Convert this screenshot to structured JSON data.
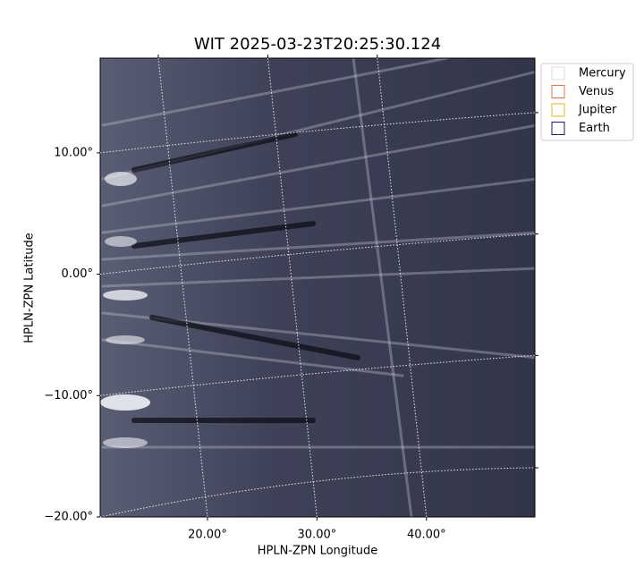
{
  "chart_data": {
    "type": "image",
    "title": "WIT 2025-03-23T20:25:30.124",
    "xlabel": "HPLN-ZPN Longitude",
    "ylabel": "HPLN-ZPN Latitude",
    "xlim": [
      10.2,
      49.9
    ],
    "ylim": [
      -20,
      17.8
    ],
    "xticks": [
      {
        "value": 20,
        "label": "20.00°"
      },
      {
        "value": 30,
        "label": "30.00°"
      },
      {
        "value": 40,
        "label": "40.00°"
      }
    ],
    "yticks": [
      {
        "value": -20,
        "label": "−20.00°"
      },
      {
        "value": -10,
        "label": "−10.00°"
      },
      {
        "value": 0,
        "label": "0.00°"
      },
      {
        "value": 10,
        "label": "10.00°"
      }
    ],
    "grid": true,
    "legend": "upper right",
    "series": [
      {
        "name": "Mercury",
        "color": "#dddddd"
      },
      {
        "name": "Venus",
        "color": "#e07b39"
      },
      {
        "name": "Jupiter",
        "color": "#e8b52a"
      },
      {
        "name": "Earth",
        "color": "#1a1a7a"
      }
    ]
  }
}
